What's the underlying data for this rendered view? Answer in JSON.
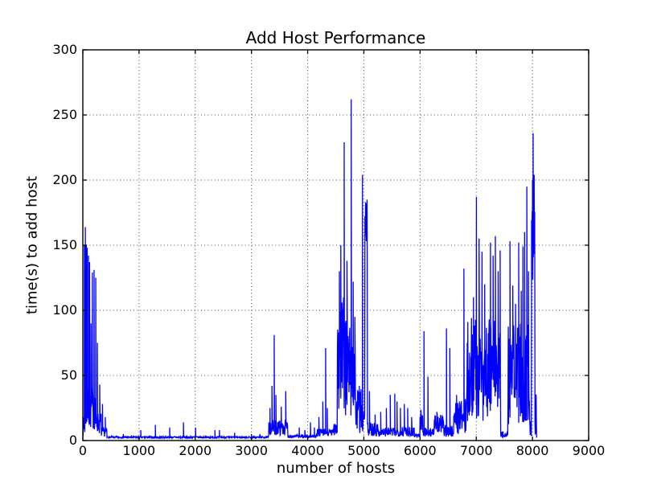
{
  "chart_data": {
    "type": "line",
    "title": "Add Host Performance",
    "xlabel": "number of hosts",
    "ylabel": "time(s) to add host",
    "xlim": [
      0,
      9000
    ],
    "ylim": [
      0,
      300
    ],
    "xticks": [
      0,
      1000,
      2000,
      3000,
      4000,
      5000,
      6000,
      7000,
      8000,
      9000
    ],
    "yticks": [
      0,
      50,
      100,
      150,
      200,
      250,
      300
    ],
    "grid": true,
    "grid_style": "dotted",
    "legend": "none",
    "line_color": "#0000ff",
    "axes_color": "#000000",
    "background": "#ffffff",
    "data_start_x": 0,
    "data_end_x": 8075,
    "flat_baseline": 2.5,
    "noise_bands": [
      [
        0,
        40,
        3,
        18
      ],
      [
        40,
        230,
        8,
        40
      ],
      [
        230,
        330,
        5,
        22
      ],
      [
        330,
        430,
        3,
        10
      ],
      [
        430,
        3310,
        1.8,
        3.2
      ],
      [
        3310,
        3650,
        4,
        16
      ],
      [
        3650,
        4150,
        2,
        4.5
      ],
      [
        4150,
        4460,
        3,
        9
      ],
      [
        4460,
        4530,
        4,
        18
      ],
      [
        4530,
        4720,
        15,
        110
      ],
      [
        4720,
        4770,
        20,
        95
      ],
      [
        4770,
        4850,
        15,
        90
      ],
      [
        4850,
        4960,
        5,
        40
      ],
      [
        4960,
        5020,
        5,
        28
      ],
      [
        5020,
        5065,
        140,
        183
      ],
      [
        5065,
        5250,
        3,
        14
      ],
      [
        5250,
        5680,
        3,
        10
      ],
      [
        5680,
        5900,
        3,
        12
      ],
      [
        5900,
        6000,
        2,
        6
      ],
      [
        6000,
        6050,
        5,
        25
      ],
      [
        6050,
        6250,
        3,
        10
      ],
      [
        6250,
        6420,
        5,
        20
      ],
      [
        6420,
        6600,
        3,
        12
      ],
      [
        6600,
        6830,
        5,
        32
      ],
      [
        6830,
        7435,
        15,
        95
      ],
      [
        7435,
        7565,
        2,
        7
      ],
      [
        7565,
        7955,
        12,
        90
      ],
      [
        7955,
        7985,
        3,
        15
      ],
      [
        7985,
        8045,
        120,
        200
      ],
      [
        8045,
        8075,
        2,
        50
      ]
    ],
    "spikes": [
      [
        28,
        150
      ],
      [
        45,
        164
      ],
      [
        62,
        150
      ],
      [
        78,
        148
      ],
      [
        100,
        142
      ],
      [
        120,
        137
      ],
      [
        145,
        90
      ],
      [
        170,
        129
      ],
      [
        200,
        131
      ],
      [
        230,
        125
      ],
      [
        260,
        75
      ],
      [
        300,
        43
      ],
      [
        350,
        28
      ],
      [
        400,
        18
      ],
      [
        720,
        5
      ],
      [
        1030,
        8
      ],
      [
        1290,
        12
      ],
      [
        1545,
        10
      ],
      [
        1790,
        14
      ],
      [
        2005,
        10
      ],
      [
        2350,
        8
      ],
      [
        2430,
        8
      ],
      [
        2700,
        6
      ],
      [
        3000,
        5
      ],
      [
        3150,
        5
      ],
      [
        3330,
        25
      ],
      [
        3365,
        42
      ],
      [
        3405,
        81
      ],
      [
        3435,
        35
      ],
      [
        3530,
        26
      ],
      [
        3610,
        38
      ],
      [
        3850,
        10
      ],
      [
        3950,
        8
      ],
      [
        4050,
        14
      ],
      [
        4120,
        10
      ],
      [
        4200,
        18
      ],
      [
        4270,
        30
      ],
      [
        4320,
        71
      ],
      [
        4350,
        25
      ],
      [
        4565,
        130
      ],
      [
        4590,
        150
      ],
      [
        4650,
        229
      ],
      [
        4700,
        138
      ],
      [
        4775,
        262
      ],
      [
        4810,
        122
      ],
      [
        4840,
        95
      ],
      [
        4920,
        42
      ],
      [
        4975,
        204
      ],
      [
        5030,
        183
      ],
      [
        5057,
        185
      ],
      [
        5100,
        38
      ],
      [
        5200,
        20
      ],
      [
        5300,
        22
      ],
      [
        5400,
        25
      ],
      [
        5470,
        35
      ],
      [
        5550,
        36
      ],
      [
        5590,
        30
      ],
      [
        5650,
        25
      ],
      [
        5720,
        28
      ],
      [
        5780,
        25
      ],
      [
        5850,
        18
      ],
      [
        6070,
        84
      ],
      [
        6140,
        49
      ],
      [
        6300,
        22
      ],
      [
        6470,
        86
      ],
      [
        6530,
        71
      ],
      [
        6650,
        35
      ],
      [
        6700,
        30
      ],
      [
        6780,
        132
      ],
      [
        6850,
        88
      ],
      [
        6880,
        60
      ],
      [
        6950,
        110
      ],
      [
        7003,
        187
      ],
      [
        7050,
        155
      ],
      [
        7103,
        145
      ],
      [
        7150,
        120
      ],
      [
        7253,
        152
      ],
      [
        7300,
        142
      ],
      [
        7340,
        157
      ],
      [
        7390,
        130
      ],
      [
        7425,
        146
      ],
      [
        7600,
        153
      ],
      [
        7650,
        119
      ],
      [
        7700,
        105
      ],
      [
        7755,
        152
      ],
      [
        7800,
        115
      ],
      [
        7830,
        149
      ],
      [
        7860,
        160
      ],
      [
        7900,
        195
      ],
      [
        7930,
        130
      ],
      [
        8000,
        200
      ],
      [
        8012,
        236
      ],
      [
        8030,
        204
      ]
    ]
  }
}
